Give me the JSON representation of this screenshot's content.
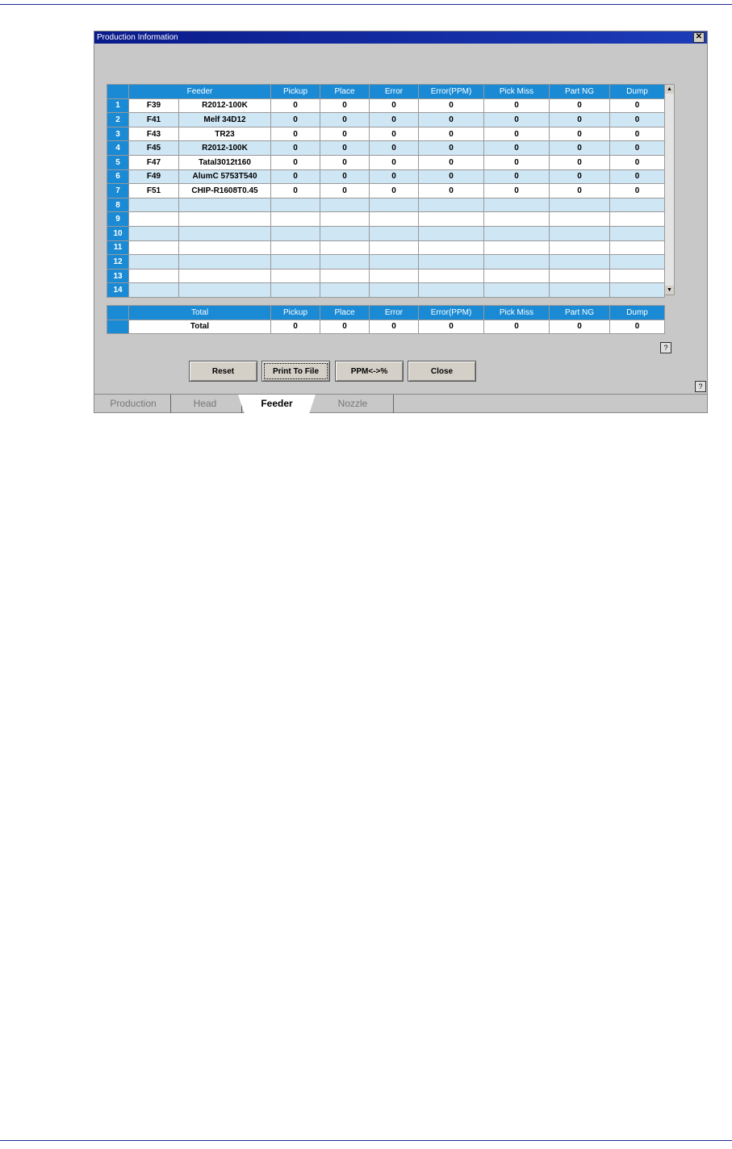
{
  "window": {
    "title": "Production Information",
    "close_glyph": "✕"
  },
  "grid": {
    "headers": [
      "Feeder",
      "Pickup",
      "Place",
      "Error",
      "Error(PPM)",
      "Pick Miss",
      "Part NG",
      "Dump"
    ],
    "rows": [
      {
        "no": "1",
        "code": "F39",
        "part": "R2012-100K",
        "values": [
          "0",
          "0",
          "0",
          "0",
          "0",
          "0",
          "0"
        ]
      },
      {
        "no": "2",
        "code": "F41",
        "part": "Melf 34D12",
        "values": [
          "0",
          "0",
          "0",
          "0",
          "0",
          "0",
          "0"
        ]
      },
      {
        "no": "3",
        "code": "F43",
        "part": "TR23",
        "values": [
          "0",
          "0",
          "0",
          "0",
          "0",
          "0",
          "0"
        ]
      },
      {
        "no": "4",
        "code": "F45",
        "part": "R2012-100K",
        "values": [
          "0",
          "0",
          "0",
          "0",
          "0",
          "0",
          "0"
        ]
      },
      {
        "no": "5",
        "code": "F47",
        "part": "Tatal3012t160",
        "values": [
          "0",
          "0",
          "0",
          "0",
          "0",
          "0",
          "0"
        ]
      },
      {
        "no": "6",
        "code": "F49",
        "part": "AlumC 5753T540",
        "values": [
          "0",
          "0",
          "0",
          "0",
          "0",
          "0",
          "0"
        ]
      },
      {
        "no": "7",
        "code": "F51",
        "part": "CHIP-R1608T0.45",
        "values": [
          "0",
          "0",
          "0",
          "0",
          "0",
          "0",
          "0"
        ]
      },
      {
        "no": "8",
        "code": "",
        "part": "",
        "values": [
          "",
          "",
          "",
          "",
          "",
          "",
          ""
        ]
      },
      {
        "no": "9",
        "code": "",
        "part": "",
        "values": [
          "",
          "",
          "",
          "",
          "",
          "",
          ""
        ]
      },
      {
        "no": "10",
        "code": "",
        "part": "",
        "values": [
          "",
          "",
          "",
          "",
          "",
          "",
          ""
        ]
      },
      {
        "no": "11",
        "code": "",
        "part": "",
        "values": [
          "",
          "",
          "",
          "",
          "",
          "",
          ""
        ]
      },
      {
        "no": "12",
        "code": "",
        "part": "",
        "values": [
          "",
          "",
          "",
          "",
          "",
          "",
          ""
        ]
      },
      {
        "no": "13",
        "code": "",
        "part": "",
        "values": [
          "",
          "",
          "",
          "",
          "",
          "",
          ""
        ]
      },
      {
        "no": "14",
        "code": "",
        "part": "",
        "values": [
          "",
          "",
          "",
          "",
          "",
          "",
          ""
        ]
      }
    ]
  },
  "totals": {
    "headers": [
      "Total",
      "Pickup",
      "Place",
      "Error",
      "Error(PPM)",
      "Pick Miss",
      "Part NG",
      "Dump"
    ],
    "row": {
      "label": "Total",
      "values": [
        "0",
        "0",
        "0",
        "0",
        "0",
        "0",
        "0"
      ]
    }
  },
  "buttons": {
    "reset": "Reset",
    "print": "Print To File",
    "ppm": "PPM<->%",
    "close": "Close"
  },
  "help_glyph": "?",
  "tabs": [
    {
      "label": "Production"
    },
    {
      "label": "Head"
    },
    {
      "label": "Feeder",
      "active": true
    },
    {
      "label": "Nozzle"
    }
  ],
  "colors": {
    "header": "#1a8ad4",
    "alt_row": "#cfe6f5",
    "titlebar": "#0a1a8a"
  }
}
